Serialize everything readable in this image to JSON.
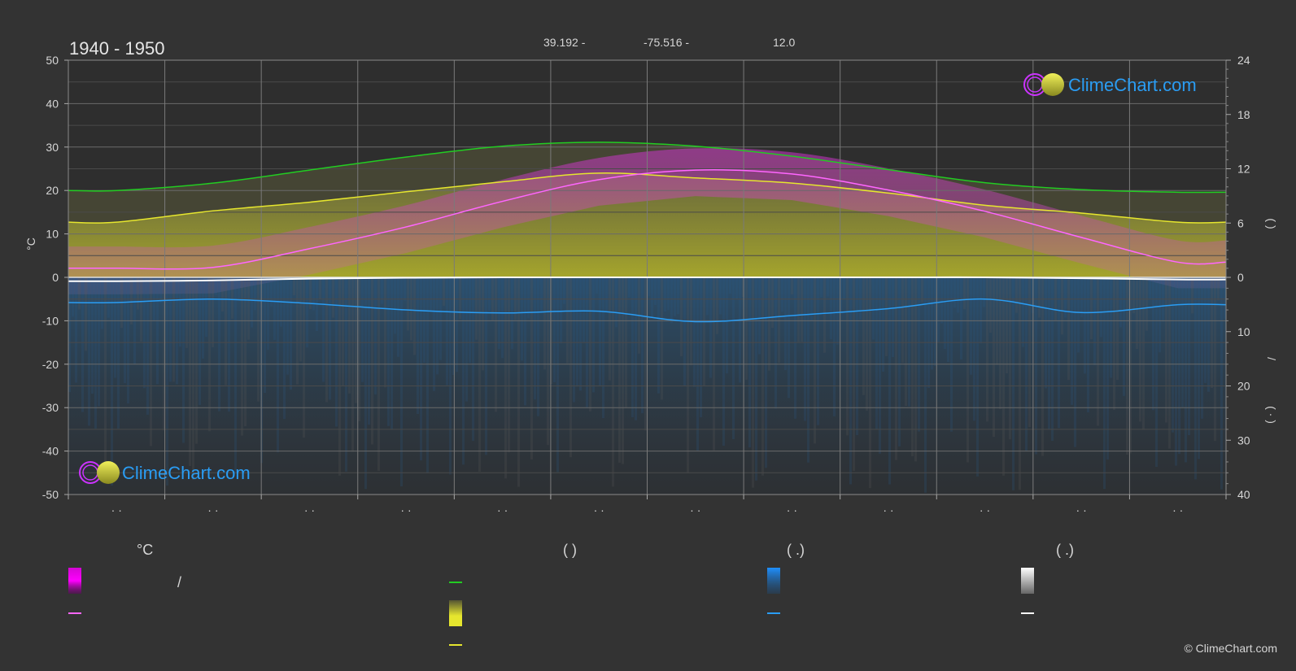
{
  "chart_data": {
    "type": "line",
    "title": "1940 - 1950",
    "coords": {
      "lat": "39.192 -",
      "lon": "-75.516 -",
      "elev": "12.0"
    },
    "y_left": {
      "label": "°C",
      "lim": [
        -50,
        50
      ],
      "ticks": [
        "50",
        "40",
        "30",
        "20",
        "10",
        "0",
        "-10",
        "-20",
        "-30",
        "-40",
        "-50"
      ]
    },
    "y_right_top": {
      "lim": [
        0,
        24
      ],
      "ticks": [
        "24",
        "18",
        "12",
        "6",
        "0"
      ],
      "label_glyph": "(   )"
    },
    "y_right_bottom": {
      "lim": [
        0,
        40
      ],
      "ticks": [
        "10",
        "20",
        "30",
        "40"
      ],
      "label_glyphs": [
        "/",
        "( · )"
      ]
    },
    "x_tick_labels": [
      "· ·",
      "· ·",
      "· ·",
      "· ·",
      "· ·",
      "· ·",
      "· ·",
      "· ·",
      "· ·",
      "· ·",
      "· ·",
      "· ·"
    ],
    "x_points": [
      0,
      1,
      2,
      3,
      4,
      5,
      6,
      7,
      8,
      9,
      10,
      11
    ],
    "series": [
      {
        "key": "daylight",
        "color": "#22cc22",
        "values": [
          20.0,
          21.7,
          24.7,
          27.7,
          30.2,
          31.1,
          30.2,
          27.9,
          24.8,
          21.8,
          20.2,
          19.6
        ]
      },
      {
        "key": "sunshine",
        "color": "#e6e62e",
        "values": [
          12.7,
          15.3,
          17.3,
          19.7,
          22.0,
          24.0,
          22.9,
          21.7,
          19.4,
          16.6,
          14.8,
          12.7
        ]
      },
      {
        "key": "avg_temp",
        "color": "#ff66ff",
        "values": [
          2.1,
          2.3,
          6.6,
          11.6,
          17.5,
          22.5,
          24.7,
          23.8,
          20.1,
          15.2,
          9.2,
          3.5
        ]
      },
      {
        "key": "snow_avg",
        "color": "#ffffff",
        "values": [
          -0.9,
          -0.7,
          -0.3,
          -0.1,
          0,
          0,
          0,
          0,
          0,
          0,
          -0.2,
          -0.5
        ]
      },
      {
        "key": "rain_avg",
        "color": "#2a9df4",
        "values": [
          -5.8,
          -5.0,
          -6.0,
          -7.5,
          -8.2,
          -7.8,
          -10.2,
          -8.8,
          -7.2,
          -5.0,
          -8.1,
          -6.3
        ]
      }
    ],
    "legend": {
      "headers": [
        "°C",
        "(          )",
        "(   .)",
        "(   .)"
      ],
      "temp_label": "/",
      "colors": {
        "temp_grad": "#e600e6",
        "avg_temp": "#ff66ff",
        "daylight": "#22cc22",
        "sunshine_grad": "#e6e62e",
        "sunshine": "#e6e62e",
        "rain_grad": "#1e90ff",
        "rain": "#2a9df4",
        "snow_grad": "#ffffff",
        "snow": "#ffffff"
      }
    },
    "grid": true
  },
  "brand": {
    "name": "ClimeChart.com",
    "copyright": "© ClimeChart.com"
  }
}
